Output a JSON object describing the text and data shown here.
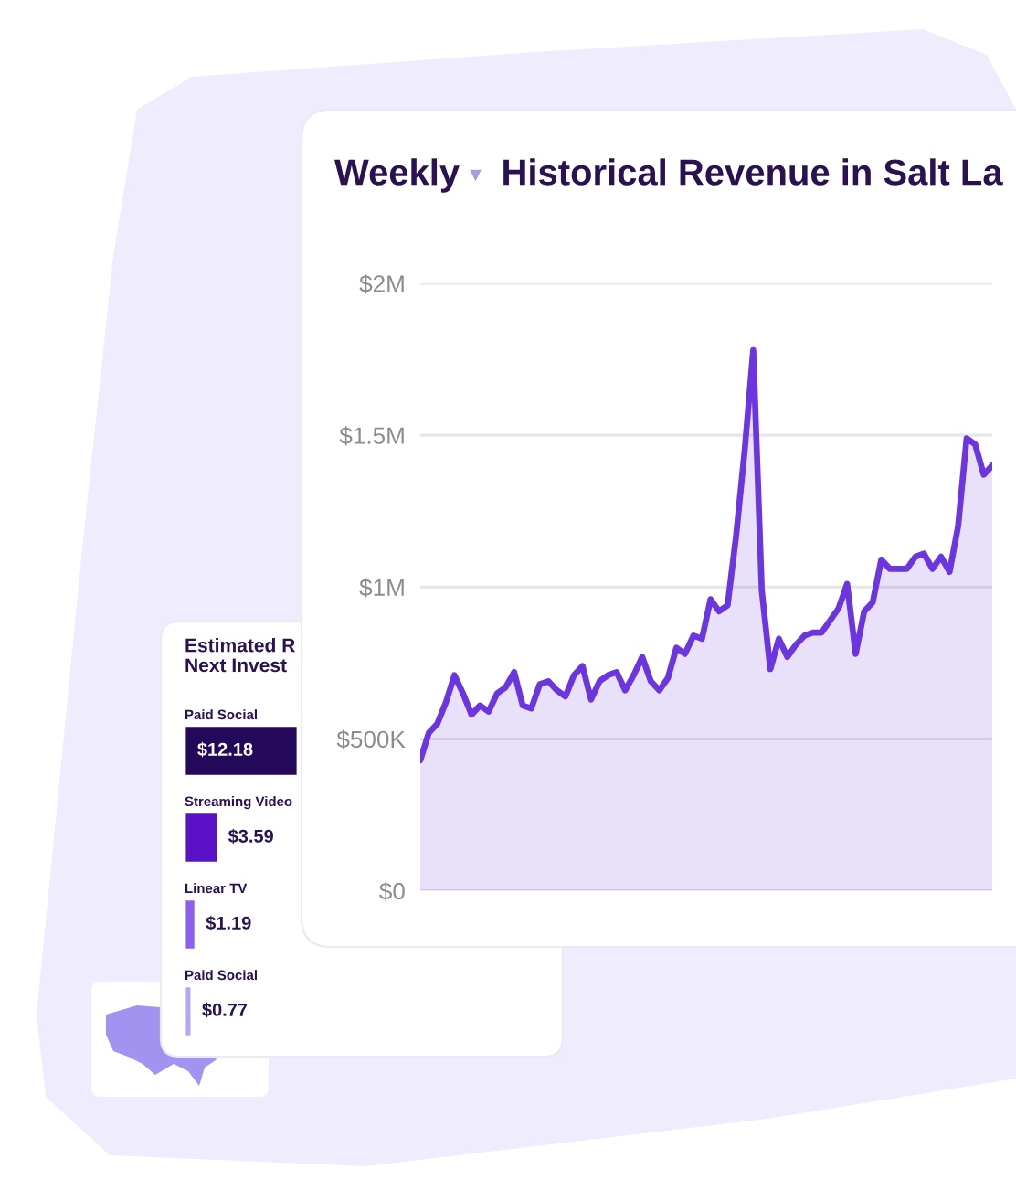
{
  "chart_data": [
    {
      "type": "area",
      "title": "Historical Revenue in Salt La",
      "annotations": [
        "Weekly"
      ],
      "categories": [
        null,
        null,
        null,
        null,
        null,
        null,
        null,
        null,
        null,
        null,
        null,
        null,
        null,
        null,
        null,
        null,
        null,
        null,
        null,
        null,
        null,
        null,
        null,
        null,
        null,
        null,
        null,
        null,
        null,
        null,
        null,
        null,
        null,
        null,
        null,
        null,
        null,
        null,
        null,
        null,
        null,
        null,
        null,
        null,
        null,
        null,
        null,
        null,
        null,
        null,
        null,
        null,
        null,
        null,
        null,
        null,
        null,
        null,
        null,
        null,
        null,
        null,
        null,
        null,
        null,
        null,
        null,
        null
      ],
      "series": [
        {
          "color": "#6b35e0",
          "values": [
            430000,
            520000,
            550000,
            620000,
            710000,
            650000,
            580000,
            610000,
            590000,
            650000,
            670000,
            720000,
            610000,
            600000,
            680000,
            690000,
            660000,
            640000,
            710000,
            740000,
            630000,
            690000,
            710000,
            720000,
            660000,
            710000,
            770000,
            690000,
            660000,
            700000,
            800000,
            780000,
            840000,
            830000,
            960000,
            920000,
            940000,
            1170000,
            1450000,
            1780000,
            990000,
            730000,
            830000,
            770000,
            810000,
            840000,
            850000,
            850000,
            890000,
            930000,
            1010000,
            780000,
            920000,
            950000,
            1090000,
            1060000,
            1060000,
            1060000,
            1100000,
            1110000,
            1060000,
            1100000,
            1050000,
            1200000,
            1490000,
            1470000,
            1370000,
            1400000
          ]
        }
      ],
      "ylim": [
        0,
        2000000
      ],
      "yticks": [
        {
          "value": 0,
          "label": "$0"
        },
        {
          "value": 500000,
          "label": "$500K"
        },
        {
          "value": 1000000,
          "label": "$1M"
        },
        {
          "value": 1500000,
          "label": "$1.5M"
        },
        {
          "value": 2000000,
          "label": "$2M"
        }
      ],
      "grid": "y",
      "tick_labels": "y"
    },
    {
      "type": "bar",
      "orientation": "horizontal",
      "title": "Estimated R\nNext Invest",
      "categories": [
        "Paid Social",
        "Streaming Video",
        "Linear TV",
        "Paid Social"
      ],
      "values": [
        12.18,
        3.59,
        1.19,
        0.77
      ],
      "colors": [
        "#24085a",
        "#5b12c6",
        "#8d5ff0",
        "#b6a6f6"
      ],
      "value_labels": [
        "$12.18",
        "$3.59",
        "$1.19",
        "$0.77"
      ]
    }
  ]
}
